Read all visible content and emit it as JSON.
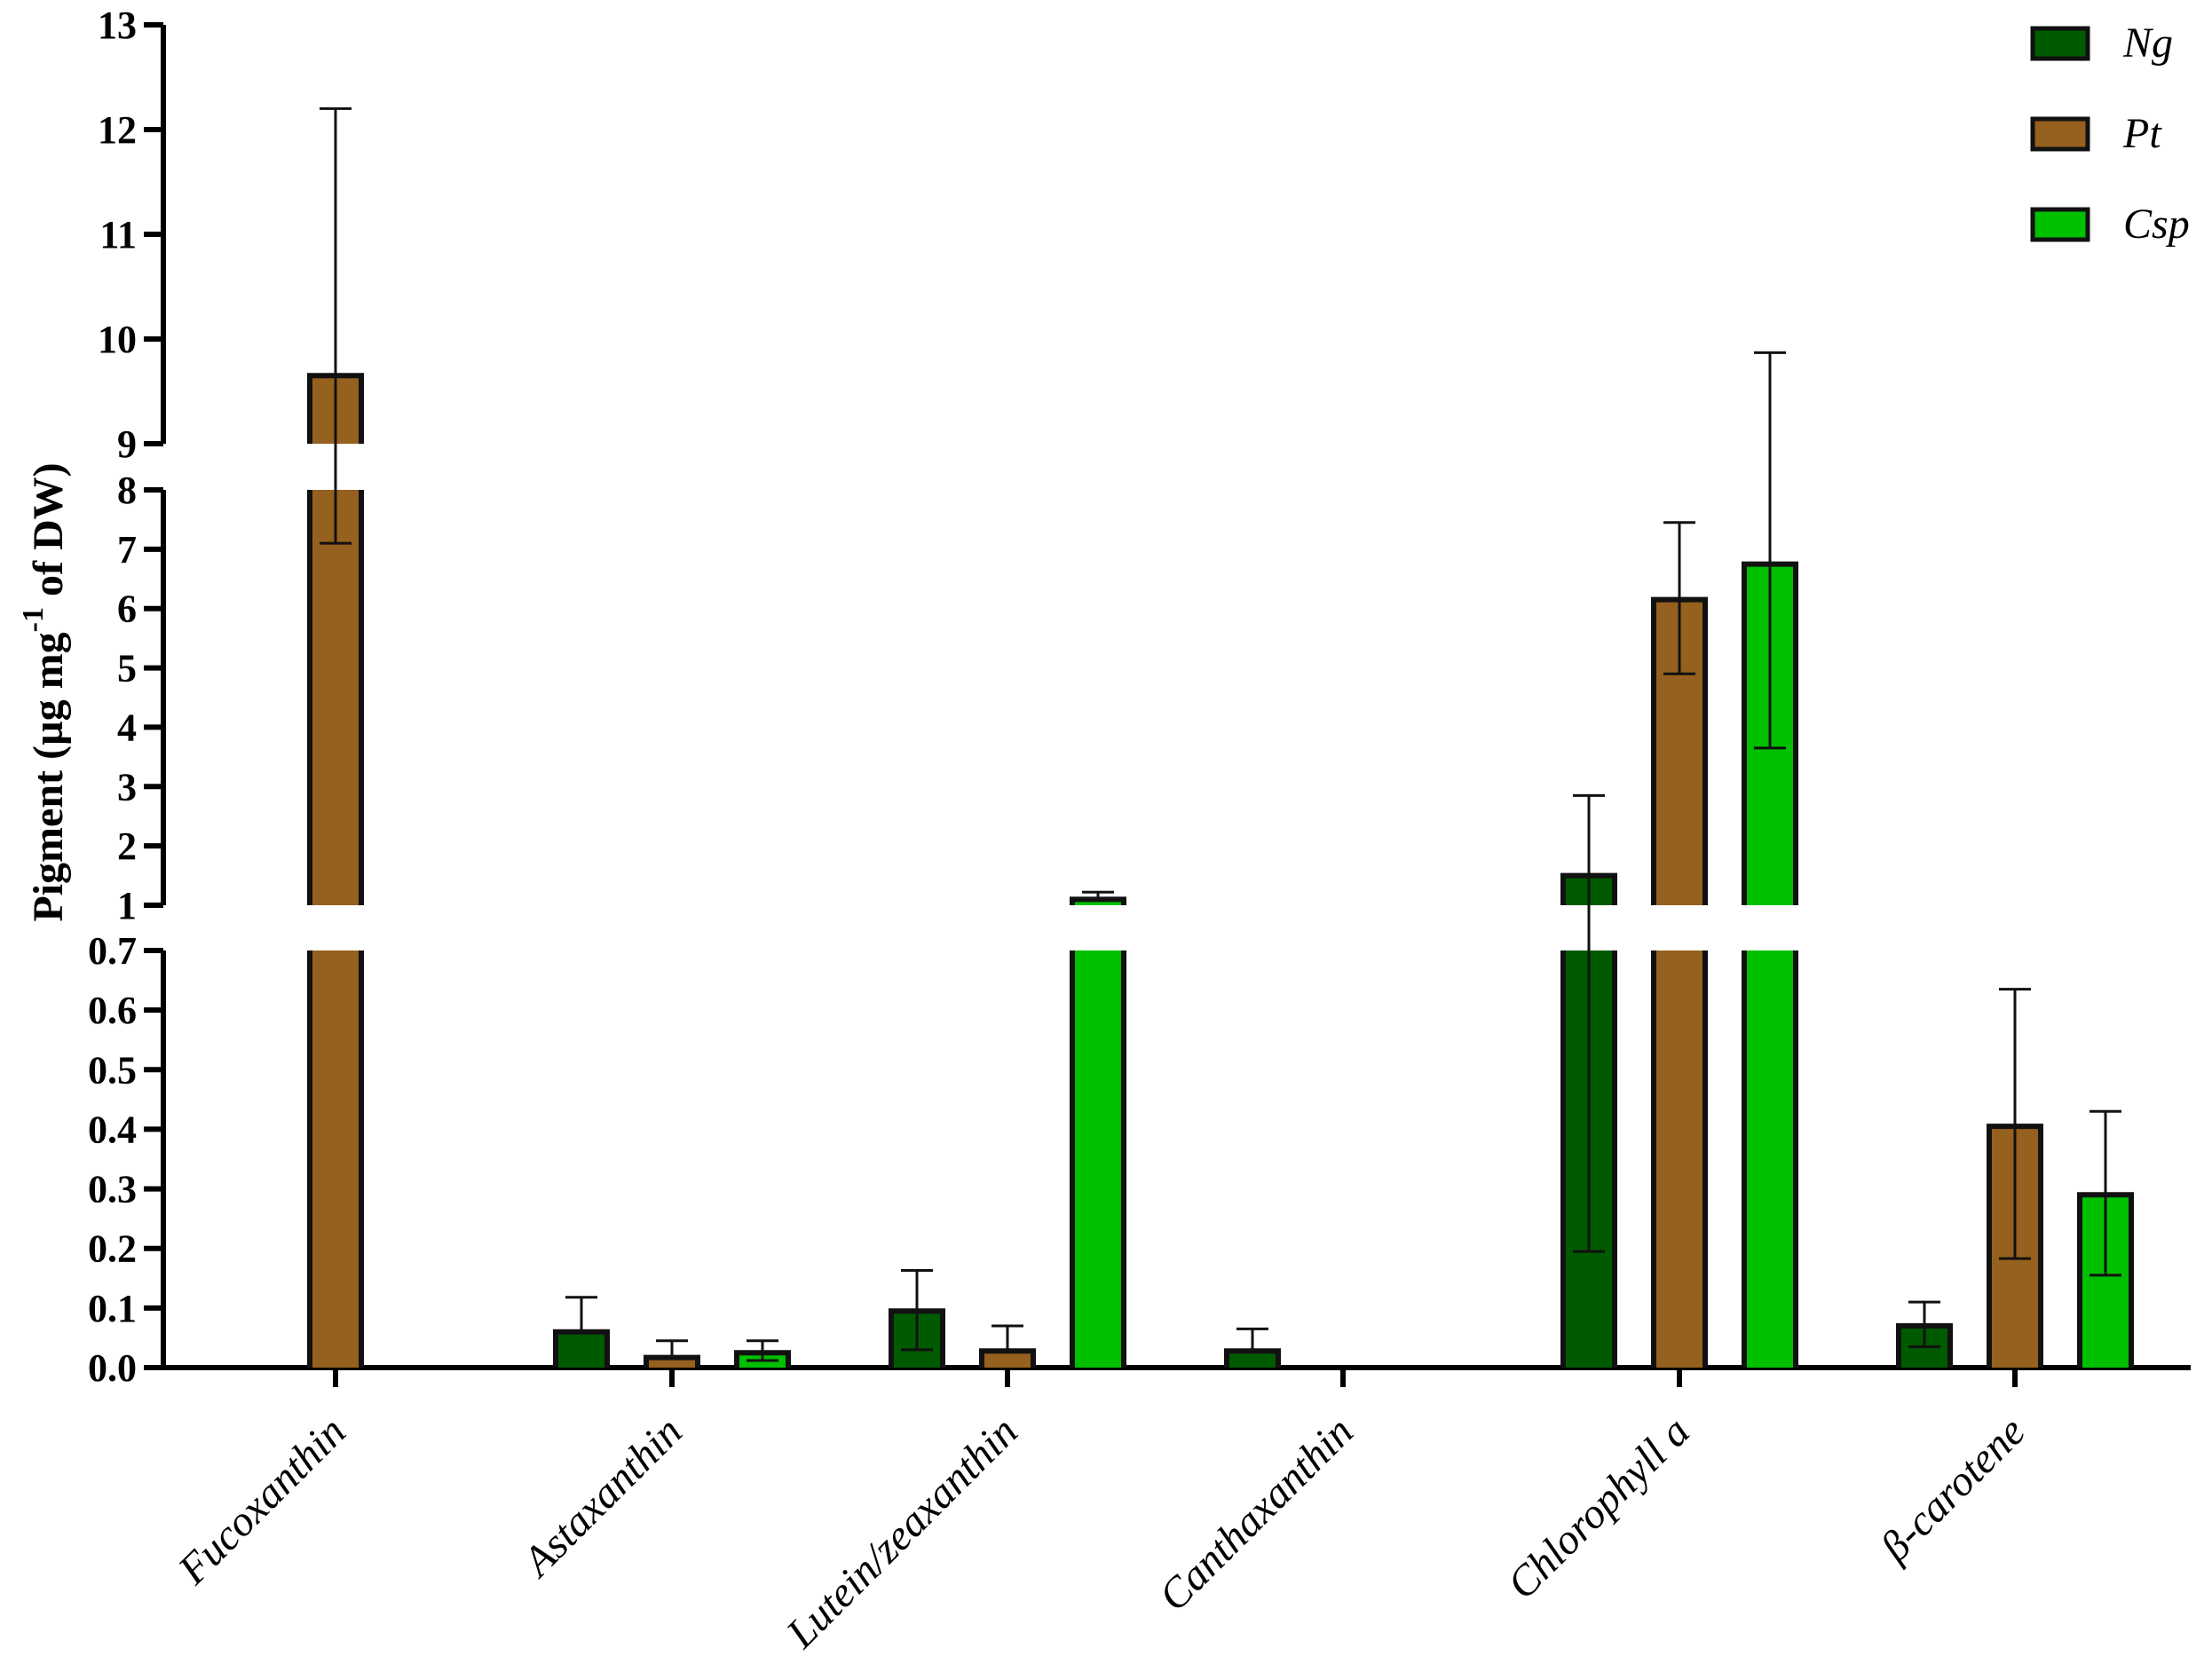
{
  "chart_data": {
    "type": "bar",
    "title": "",
    "xlabel": "",
    "ylabel": {
      "base": "Pigment (µg mg",
      "sup": "-1",
      "tail": " of DW)"
    },
    "y_axis_breaks": [
      {
        "range": [
          0,
          0.7
        ],
        "ticks": [
          "0.0",
          "0.1",
          "0.2",
          "0.3",
          "0.4",
          "0.5",
          "0.6",
          "0.7"
        ]
      },
      {
        "range": [
          1,
          8
        ],
        "ticks": [
          "1",
          "2",
          "3",
          "4",
          "5",
          "6",
          "7",
          "8"
        ]
      },
      {
        "range": [
          9,
          13
        ],
        "ticks": [
          "9",
          "10",
          "11",
          "12",
          "13"
        ]
      }
    ],
    "categories": [
      "Fucoxanthin",
      "Astaxanthin",
      "Lutein/zeaxanthin",
      "Canthaxanthin",
      "Chlorophyll a",
      "β-carotene"
    ],
    "series": [
      {
        "name": "Ng",
        "color": "#005a00",
        "values": [
          null,
          0.06,
          0.095,
          0.028,
          1.5,
          0.07
        ],
        "err_low": [
          null,
          null,
          0.03,
          null,
          0.195,
          0.035
        ],
        "err_high": [
          null,
          0.118,
          0.163,
          0.065,
          2.85,
          0.11
        ]
      },
      {
        "name": "Pt",
        "color": "#96601e",
        "values": [
          9.65,
          0.017,
          0.028,
          null,
          6.15,
          0.405
        ],
        "err_low": [
          7.1,
          null,
          null,
          null,
          4.9,
          0.183
        ],
        "err_high": [
          12.2,
          0.045,
          0.07,
          null,
          7.45,
          0.635
        ]
      },
      {
        "name": "Csp",
        "color": "#00c000",
        "values": [
          null,
          0.025,
          1.1,
          null,
          6.75,
          0.29
        ],
        "err_low": [
          null,
          0.012,
          null,
          null,
          3.65,
          0.155
        ],
        "err_high": [
          null,
          0.045,
          1.22,
          null,
          9.87,
          0.43
        ]
      }
    ],
    "legend_position": "top-right",
    "grid": false
  }
}
